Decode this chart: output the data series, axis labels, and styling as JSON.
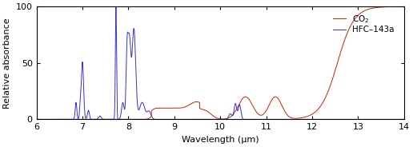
{
  "xlabel": "Wavelength (μm)",
  "ylabel": "Relative absorbance",
  "xlim": [
    6,
    14
  ],
  "ylim": [
    0,
    100
  ],
  "xticks": [
    6,
    7,
    8,
    9,
    10,
    11,
    12,
    13,
    14
  ],
  "yticks": [
    0,
    50,
    100
  ],
  "co2_color": "#cc2200",
  "hfc_color": "#3333cc",
  "legend_co2": "CO$_2$",
  "legend_hfc": "HFC–143a",
  "background_color": "#ffffff"
}
